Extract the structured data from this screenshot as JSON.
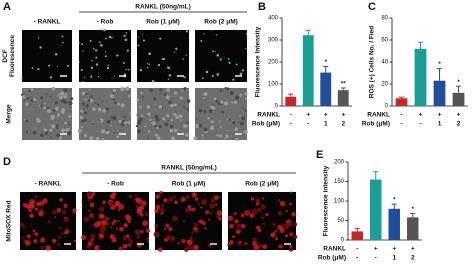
{
  "figure": {
    "panel_a": {
      "label": "A",
      "header": "RANKL (50ng/mL)",
      "columns": [
        "- RANKL",
        "- Rob",
        "Rob (1 μM)",
        "Rob (2 μM)"
      ],
      "rows": [
        {
          "lines": [
            "DCF",
            "Fluorescence"
          ],
          "color": "#1fbf3a"
        },
        {
          "lines": [
            "Merge"
          ],
          "color": "#111111"
        }
      ]
    },
    "panel_d": {
      "label": "D",
      "header": "RANKL (50ng/mL)",
      "columns": [
        "- RANKL",
        "- Rob",
        "Rob (1 μM)",
        "Rob (2 μM)"
      ],
      "rows": [
        {
          "lines": [
            "MitoSOX Red"
          ],
          "color": "#d62020"
        }
      ]
    }
  },
  "chart_data": [
    {
      "type": "bar",
      "panel": "B",
      "ylabel": "Fluorescence Intensity",
      "values": [
        42,
        322,
        152,
        72
      ],
      "errors": [
        12,
        22,
        28,
        10
      ],
      "colors": [
        "#c62828",
        "#1a9e96",
        "#1f4e9c",
        "#555555"
      ],
      "annotations": [
        null,
        null,
        "*",
        "**"
      ],
      "ylim": [
        0,
        400
      ],
      "yticks": [
        0,
        100,
        200,
        300,
        400
      ],
      "conditions": [
        {
          "name": "RANKL",
          "values": [
            "-",
            "+",
            "+",
            "+"
          ]
        },
        {
          "name": "Rob (μM)",
          "values": [
            "-",
            "-",
            "1",
            "2"
          ]
        }
      ]
    },
    {
      "type": "bar",
      "panel": "C",
      "ylabel": "ROS (+) Cells No. / Fied",
      "values": [
        7,
        52,
        23,
        12
      ],
      "errors": [
        1,
        6,
        11,
        6
      ],
      "colors": [
        "#c62828",
        "#1a9e96",
        "#1f4e9c",
        "#555555"
      ],
      "annotations": [
        null,
        null,
        "*",
        "*"
      ],
      "ylim": [
        0,
        80
      ],
      "yticks": [
        0,
        20,
        40,
        60,
        80
      ],
      "conditions": [
        {
          "name": "RANKL",
          "values": [
            "-",
            "+",
            "+",
            "+"
          ]
        },
        {
          "name": "Rob (μM)",
          "values": [
            "-",
            "-",
            "1",
            "2"
          ]
        }
      ]
    },
    {
      "type": "bar",
      "panel": "E",
      "ylabel": "Fluorescence intensity",
      "values": [
        22,
        155,
        80,
        58
      ],
      "errors": [
        8,
        20,
        12,
        10
      ],
      "colors": [
        "#c62828",
        "#1a9e96",
        "#1f4e9c",
        "#555555"
      ],
      "annotations": [
        null,
        null,
        "*",
        "*"
      ],
      "ylim": [
        0,
        200
      ],
      "yticks": [
        0,
        50,
        100,
        150,
        200
      ],
      "conditions": [
        {
          "name": "RANKL",
          "values": [
            "-",
            "+",
            "+",
            "+"
          ]
        },
        {
          "name": "Rob (μM)",
          "values": [
            "-",
            "-",
            "1",
            "2"
          ]
        }
      ]
    }
  ]
}
